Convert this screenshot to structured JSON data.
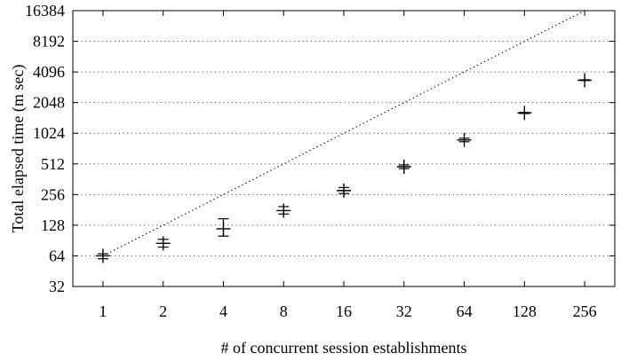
{
  "chart_data": {
    "type": "scatter",
    "title": "",
    "xlabel": "# of concurrent session establishments",
    "ylabel": "Total elapsed time (m sec)",
    "x_scale": "log2",
    "y_scale": "log2",
    "xlim": [
      0.707,
      362
    ],
    "ylim": [
      32,
      16384
    ],
    "x_ticks": [
      "1",
      "2",
      "4",
      "8",
      "16",
      "32",
      "64",
      "128",
      "256"
    ],
    "y_ticks": [
      "32",
      "64",
      "128",
      "256",
      "512",
      "1024",
      "2048",
      "4096",
      "8192",
      "16384"
    ],
    "x_tick_values": [
      1,
      2,
      4,
      8,
      16,
      32,
      64,
      128,
      256
    ],
    "y_tick_values": [
      32,
      64,
      128,
      256,
      512,
      1024,
      2048,
      4096,
      8192,
      16384
    ],
    "grid": "horizontal dotted",
    "series": [
      {
        "marker": "plus with error bars",
        "points": [
          {
            "x": 1,
            "y": 64,
            "ymin": 60,
            "ymax": 67
          },
          {
            "x": 2,
            "y": 85,
            "ymin": 78,
            "ymax": 93
          },
          {
            "x": 4,
            "y": 118,
            "ymin": 100,
            "ymax": 148
          },
          {
            "x": 8,
            "y": 178,
            "ymin": 165,
            "ymax": 195
          },
          {
            "x": 16,
            "y": 280,
            "ymin": 262,
            "ymax": 300
          },
          {
            "x": 32,
            "y": 480,
            "ymin": 460,
            "ymax": 500
          },
          {
            "x": 64,
            "y": 880,
            "ymin": 845,
            "ymax": 915
          },
          {
            "x": 128,
            "y": 1620,
            "ymin": 1600,
            "ymax": 1640
          },
          {
            "x": 256,
            "y": 3400,
            "ymin": 3370,
            "ymax": 3430
          }
        ]
      },
      {
        "line_style": "dotted",
        "points": [
          {
            "x": 1,
            "y": 64
          },
          {
            "x": 256,
            "y": 16384
          }
        ]
      }
    ]
  }
}
